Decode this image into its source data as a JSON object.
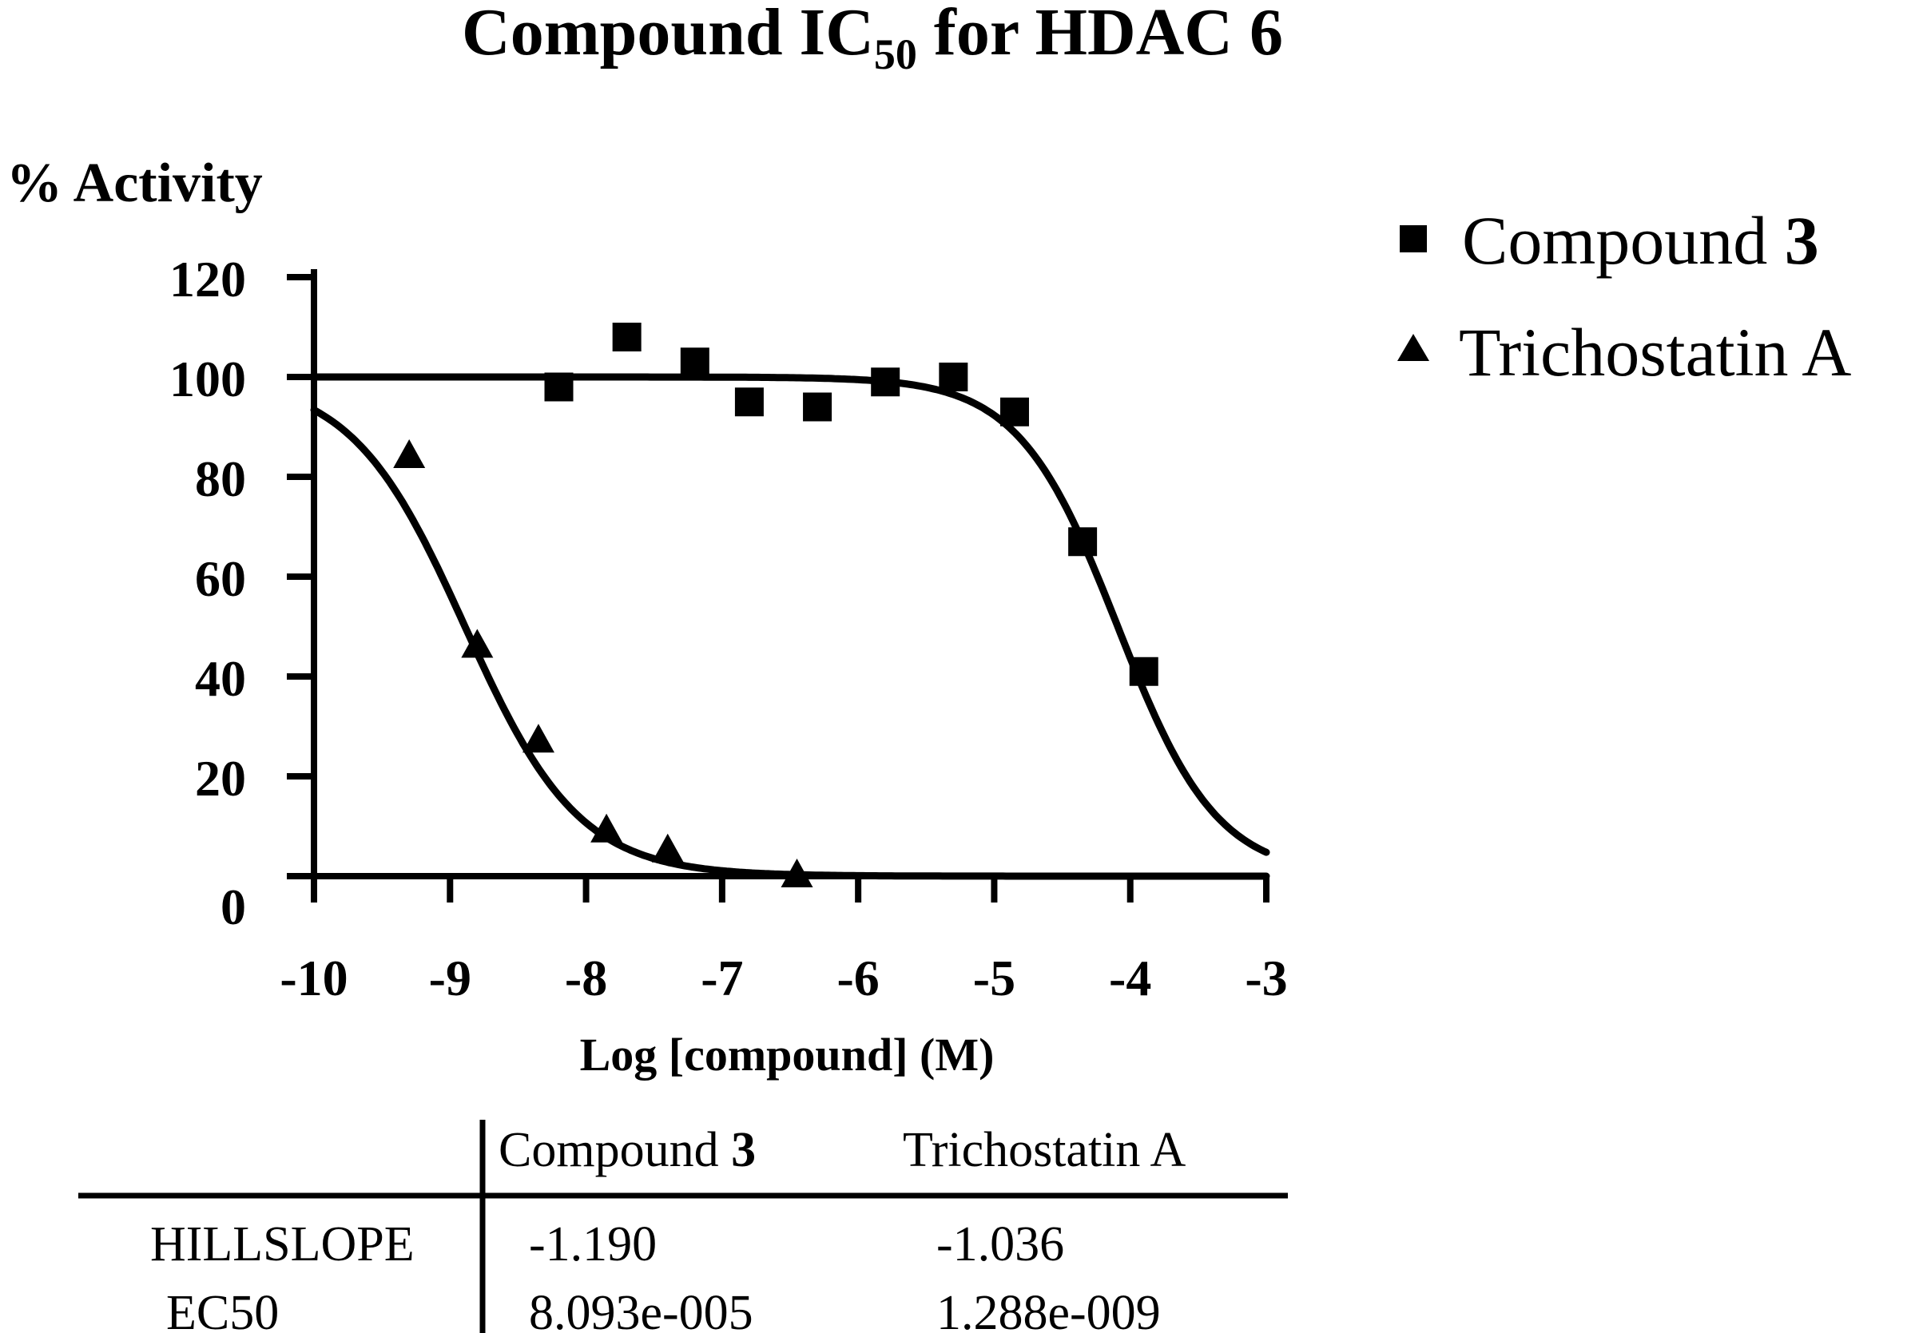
{
  "chart_data": {
    "type": "scatter",
    "title": {
      "prefix": "Compound IC",
      "subscript": "50",
      "suffix": " for HDAC 6"
    },
    "ylabel": "% Activity",
    "xlabel": "Log [compound] (M)",
    "xlim": [
      -10,
      -3
    ],
    "ylim": [
      0,
      120
    ],
    "xticks": [
      -10,
      -9,
      -8,
      -7,
      -6,
      -5,
      -4,
      -3
    ],
    "yticks": [
      0,
      20,
      40,
      60,
      80,
      100,
      120
    ],
    "grid": false,
    "legend_position": "top-right",
    "series": [
      {
        "name": "Compound 3",
        "name_parts": [
          "Compound ",
          "3"
        ],
        "marker": "square",
        "points": [
          {
            "x": -8.2,
            "y": 98
          },
          {
            "x": -7.7,
            "y": 108
          },
          {
            "x": -7.2,
            "y": 103
          },
          {
            "x": -6.8,
            "y": 95
          },
          {
            "x": -6.3,
            "y": 94
          },
          {
            "x": -5.8,
            "y": 99
          },
          {
            "x": -5.3,
            "y": 100
          },
          {
            "x": -4.85,
            "y": 93
          },
          {
            "x": -4.35,
            "y": 67
          },
          {
            "x": -3.9,
            "y": 41
          }
        ],
        "fit": {
          "top": 100,
          "bottom": 0,
          "log_ec50": -4.092,
          "hillslope": -1.19
        }
      },
      {
        "name": "Trichostatin A",
        "marker": "triangle",
        "points": [
          {
            "x": -9.3,
            "y": 84
          },
          {
            "x": -8.8,
            "y": 46
          },
          {
            "x": -8.35,
            "y": 27
          },
          {
            "x": -7.85,
            "y": 9
          },
          {
            "x": -7.4,
            "y": 5
          },
          {
            "x": -6.45,
            "y": 0
          }
        ],
        "fit": {
          "top": 100,
          "bottom": 0,
          "log_ec50": -8.89,
          "hillslope": -1.036
        }
      }
    ]
  },
  "table": {
    "columns": [
      {
        "label": "Compound ",
        "bold": "3"
      },
      {
        "label": "Trichostatin A",
        "bold": ""
      }
    ],
    "rows": [
      {
        "label": "HILLSLOPE",
        "values": [
          "-1.190",
          "-1.036"
        ]
      },
      {
        "label": "EC50",
        "values": [
          "8.093e-005",
          "1.288e-009"
        ]
      }
    ]
  }
}
